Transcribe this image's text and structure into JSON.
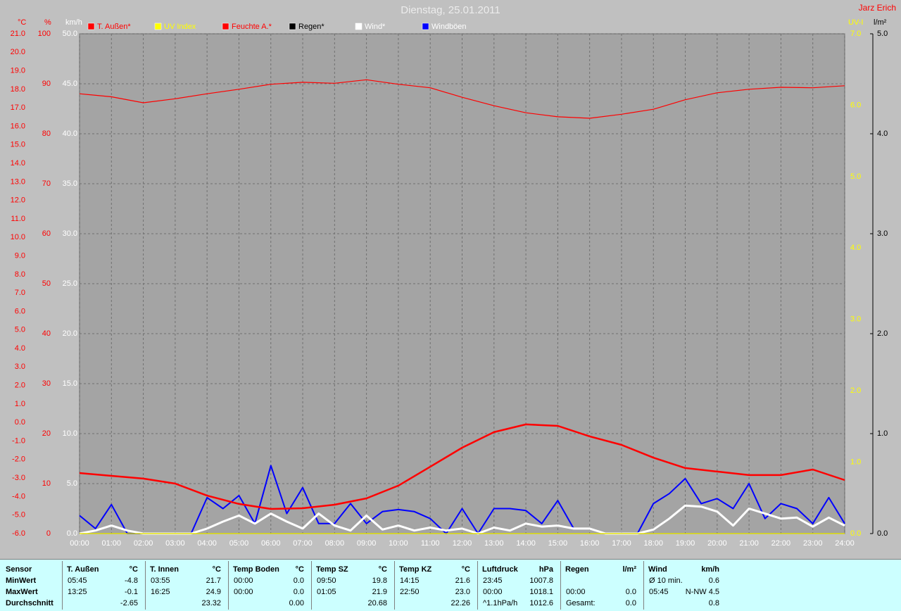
{
  "chart_data": {
    "type": "line",
    "title": "Dienstag, 25.01.2011",
    "author": "Jarz Erich",
    "xlim": [
      0,
      24
    ],
    "xticks": [
      {
        "value": 0,
        "label": "00:00"
      },
      {
        "value": 1,
        "label": "01:00"
      },
      {
        "value": 2,
        "label": "02:00"
      },
      {
        "value": 3,
        "label": "03:00"
      },
      {
        "value": 4,
        "label": "04:00"
      },
      {
        "value": 5,
        "label": "05:00"
      },
      {
        "value": 6,
        "label": "06:00"
      },
      {
        "value": 7,
        "label": "07:00"
      },
      {
        "value": 8,
        "label": "08:00"
      },
      {
        "value": 9,
        "label": "09:00"
      },
      {
        "value": 10,
        "label": "10:00"
      },
      {
        "value": 11,
        "label": "11:00"
      },
      {
        "value": 12,
        "label": "12:00"
      },
      {
        "value": 13,
        "label": "13:00"
      },
      {
        "value": 14,
        "label": "14:00"
      },
      {
        "value": 15,
        "label": "15:00"
      },
      {
        "value": 16,
        "label": "16:00"
      },
      {
        "value": 17,
        "label": "17:00"
      },
      {
        "value": 18,
        "label": "18:00"
      },
      {
        "value": 19,
        "label": "19:00"
      },
      {
        "value": 20,
        "label": "20:00"
      },
      {
        "value": 21,
        "label": "21:00"
      },
      {
        "value": 22,
        "label": "22:00"
      },
      {
        "value": 23,
        "label": "23:00"
      },
      {
        "value": 24,
        "label": "24:00"
      }
    ],
    "grid": true,
    "axes": [
      {
        "label": "°C",
        "color": "#ff0000",
        "lim": [
          -6,
          21
        ],
        "ticks": [
          {
            "value": -6,
            "label": "-6.0"
          },
          {
            "value": -5,
            "label": "-5.0"
          },
          {
            "value": -4,
            "label": "-4.0"
          },
          {
            "value": -3,
            "label": "-3.0"
          },
          {
            "value": -2,
            "label": "-2.0"
          },
          {
            "value": -1,
            "label": "-1.0"
          },
          {
            "value": 0,
            "label": "0.0"
          },
          {
            "value": 1,
            "label": "1.0"
          },
          {
            "value": 2,
            "label": "2.0"
          },
          {
            "value": 3,
            "label": "3.0"
          },
          {
            "value": 4,
            "label": "4.0"
          },
          {
            "value": 5,
            "label": "5.0"
          },
          {
            "value": 6,
            "label": "6.0"
          },
          {
            "value": 7,
            "label": "7.0"
          },
          {
            "value": 8,
            "label": "8.0"
          },
          {
            "value": 9,
            "label": "9.0"
          },
          {
            "value": 10,
            "label": "10.0"
          },
          {
            "value": 11,
            "label": "11.0"
          },
          {
            "value": 12,
            "label": "12.0"
          },
          {
            "value": 13,
            "label": "13.0"
          },
          {
            "value": 14,
            "label": "14.0"
          },
          {
            "value": 15,
            "label": "15.0"
          },
          {
            "value": 16,
            "label": "16.0"
          },
          {
            "value": 17,
            "label": "17.0"
          },
          {
            "value": 18,
            "label": "18.0"
          },
          {
            "value": 19,
            "label": "19.0"
          },
          {
            "value": 20,
            "label": "20.0"
          },
          {
            "value": 21,
            "label": "21.0"
          }
        ]
      },
      {
        "label": "%",
        "color": "#ff0000",
        "lim": [
          0,
          100
        ],
        "ticks": [
          0,
          10,
          20,
          30,
          40,
          50,
          60,
          70,
          80,
          90,
          100
        ]
      },
      {
        "label": "km/h",
        "color": "#ffffff",
        "lim": [
          0,
          50
        ],
        "ticks": [
          {
            "value": 0,
            "label": "0.0"
          },
          {
            "value": 5,
            "label": "5.0"
          },
          {
            "value": 10,
            "label": "10.0"
          },
          {
            "value": 15,
            "label": "15.0"
          },
          {
            "value": 20,
            "label": "20.0"
          },
          {
            "value": 25,
            "label": "25.0"
          },
          {
            "value": 30,
            "label": "30.0"
          },
          {
            "value": 35,
            "label": "35.0"
          },
          {
            "value": 40,
            "label": "40.0"
          },
          {
            "value": 45,
            "label": "45.0"
          },
          {
            "value": 50,
            "label": "50.0"
          }
        ]
      },
      {
        "label": "UV-I",
        "color": "#ffff00",
        "lim": [
          0,
          7
        ],
        "ticks": [
          {
            "value": 0,
            "label": "0.0"
          },
          {
            "value": 1,
            "label": "1.0"
          },
          {
            "value": 2,
            "label": "2.0"
          },
          {
            "value": 3,
            "label": "3.0"
          },
          {
            "value": 4,
            "label": "4.0"
          },
          {
            "value": 5,
            "label": "5.0"
          },
          {
            "value": 6,
            "label": "6.0"
          },
          {
            "value": 7,
            "label": "7.0"
          }
        ]
      },
      {
        "label": "l/m²",
        "color": "#000000",
        "lim": [
          0,
          5
        ],
        "ticks": [
          {
            "value": 0,
            "label": "0.0"
          },
          {
            "value": 1,
            "label": "1.0"
          },
          {
            "value": 2,
            "label": "2.0"
          },
          {
            "value": 3,
            "label": "3.0"
          },
          {
            "value": 4,
            "label": "4.0"
          },
          {
            "value": 5,
            "label": "5.0"
          }
        ]
      }
    ],
    "series": [
      {
        "name": "T. Außen*",
        "color": "#ff0000",
        "label_color": "#ff0000",
        "axis": 0,
        "x": [
          0,
          1,
          2,
          3,
          4,
          5,
          6,
          7,
          8,
          9,
          10,
          11,
          12,
          13,
          14,
          15,
          16,
          17,
          18,
          19,
          20,
          21,
          22,
          23,
          24
        ],
        "values": [
          -2.73,
          -2.88,
          -3.03,
          -3.3,
          -3.95,
          -4.4,
          -4.67,
          -4.63,
          -4.44,
          -4.1,
          -3.41,
          -2.39,
          -1.36,
          -0.52,
          -0.1,
          -0.18,
          -0.75,
          -1.21,
          -1.9,
          -2.46,
          -2.65,
          -2.84,
          -2.84,
          -2.54,
          -3.11
        ]
      },
      {
        "name": "UV Index",
        "color": "#ffff00",
        "label_color": "#ffff00",
        "axis": 3,
        "x": [
          0,
          24
        ],
        "values": [
          0,
          0
        ]
      },
      {
        "name": "Feuchte A.*",
        "color": "#ff0000",
        "label_color": "#ff0000",
        "axis": 1,
        "x": [
          0,
          1,
          2,
          3,
          4,
          5,
          6,
          7,
          8,
          9,
          10,
          11,
          12,
          13,
          14,
          15,
          16,
          17,
          18,
          19,
          20,
          21,
          22,
          23,
          24
        ],
        "values": [
          88.0,
          87.4,
          86.2,
          87.0,
          88.0,
          88.9,
          89.9,
          90.3,
          90.1,
          90.8,
          89.9,
          89.2,
          87.3,
          85.6,
          84.2,
          83.4,
          83.1,
          83.9,
          84.9,
          86.8,
          88.2,
          88.9,
          89.3,
          89.2,
          89.6
        ]
      },
      {
        "name": "Regen*",
        "color": "#000000",
        "label_color": "#000000",
        "axis": 4,
        "x": [
          0,
          24
        ],
        "values": [
          0,
          0
        ]
      },
      {
        "name": "Wind*",
        "color": "#ffffff",
        "label_color": "#ffffff",
        "axis": 2,
        "x": [
          0,
          0.5,
          1,
          1.5,
          2,
          2.5,
          3,
          3.5,
          4,
          4.5,
          5,
          5.5,
          6,
          6.5,
          7,
          7.5,
          8,
          8.5,
          9,
          9.5,
          10,
          10.5,
          11,
          11.5,
          12,
          12.5,
          13,
          13.5,
          14,
          14.5,
          15,
          15.5,
          16,
          16.5,
          17,
          17.5,
          18,
          18.5,
          19,
          19.5,
          20,
          20.5,
          21,
          21.5,
          22,
          22.5,
          23,
          23.5,
          24
        ],
        "values": [
          0,
          0.3,
          0.8,
          0.3,
          0,
          0,
          0,
          0,
          0.5,
          1.2,
          1.8,
          1.0,
          2.0,
          1.2,
          0.5,
          2.0,
          0.8,
          0.3,
          1.8,
          0.4,
          0.8,
          0.3,
          0.6,
          0.3,
          0.5,
          0,
          0.6,
          0.3,
          1.0,
          0.7,
          0.8,
          0.5,
          0.5,
          0,
          0,
          0,
          0.4,
          1.5,
          2.8,
          2.7,
          2.2,
          0.8,
          2.5,
          2.0,
          1.5,
          1.6,
          0.7,
          1.6,
          0.8
        ]
      },
      {
        "name": "Windböen",
        "color": "#0000ff",
        "label_color": "#ffffff",
        "axis": 2,
        "x": [
          0,
          0.5,
          1,
          1.5,
          2,
          2.5,
          3,
          3.5,
          4,
          4.5,
          5,
          5.5,
          6,
          6.5,
          7,
          7.5,
          8,
          8.5,
          9,
          9.5,
          10,
          10.5,
          11,
          11.5,
          12,
          12.5,
          13,
          13.5,
          14,
          14.5,
          15,
          15.5,
          16,
          16.5,
          17,
          17.5,
          18,
          18.5,
          19,
          19.5,
          20,
          20.5,
          21,
          21.5,
          22,
          22.5,
          23,
          23.5,
          24
        ],
        "values": [
          1.8,
          0.5,
          2.9,
          0,
          0,
          0,
          0,
          0,
          3.6,
          2.5,
          3.8,
          1.0,
          6.8,
          2.0,
          4.6,
          1.0,
          1.0,
          3.0,
          1.0,
          2.2,
          2.4,
          2.2,
          1.5,
          0,
          2.5,
          0,
          2.5,
          2.5,
          2.3,
          1.0,
          3.3,
          0.5,
          0.5,
          0,
          0,
          0,
          3.0,
          4.0,
          5.5,
          3.0,
          3.5,
          2.5,
          5.0,
          1.5,
          3.0,
          2.5,
          1.0,
          3.6,
          1.0
        ]
      }
    ]
  },
  "table": {
    "header": "Sensor",
    "columns": [
      {
        "name": "T. Außen",
        "unit": "°C"
      },
      {
        "name": "T. Innen",
        "unit": "°C"
      },
      {
        "name": "Temp Boden",
        "unit": "°C"
      },
      {
        "name": "Temp SZ",
        "unit": "°C"
      },
      {
        "name": "Temp KZ",
        "unit": "°C"
      },
      {
        "name": "Luftdruck",
        "unit": "hPa"
      },
      {
        "name": "Regen",
        "unit": "l/m²"
      },
      {
        "name": "Wind",
        "unit": "km/h"
      }
    ],
    "rows": [
      {
        "label": "MinWert",
        "cells": [
          [
            "05:45",
            "-4.8"
          ],
          [
            "03:55",
            "21.7"
          ],
          [
            "00:00",
            "0.0"
          ],
          [
            "09:50",
            "19.8"
          ],
          [
            "14:15",
            "21.6"
          ],
          [
            "23:45",
            "1007.8"
          ],
          [
            null,
            null
          ],
          [
            "Ø 10 min.",
            "0.6"
          ]
        ]
      },
      {
        "label": "MaxWert",
        "cells": [
          [
            "13:25",
            "-0.1"
          ],
          [
            "16:25",
            "24.9"
          ],
          [
            "00:00",
            "0.0"
          ],
          [
            "01:05",
            "21.9"
          ],
          [
            "22:50",
            "23.0"
          ],
          [
            "00:00",
            "1018.1"
          ],
          [
            "00:00",
            "0.0"
          ],
          [
            "05:45",
            "N-NW 4.5"
          ]
        ]
      },
      {
        "label": "Durchschnitt",
        "cells": [
          [
            null,
            "-2.65"
          ],
          [
            null,
            "23.32"
          ],
          [
            null,
            "0.00"
          ],
          [
            null,
            "20.68"
          ],
          [
            null,
            "22.26"
          ],
          [
            "^1.1hPa/h",
            "1012.6"
          ],
          [
            "Gesamt:",
            "0.0"
          ],
          [
            null,
            "0.8"
          ]
        ]
      }
    ]
  }
}
